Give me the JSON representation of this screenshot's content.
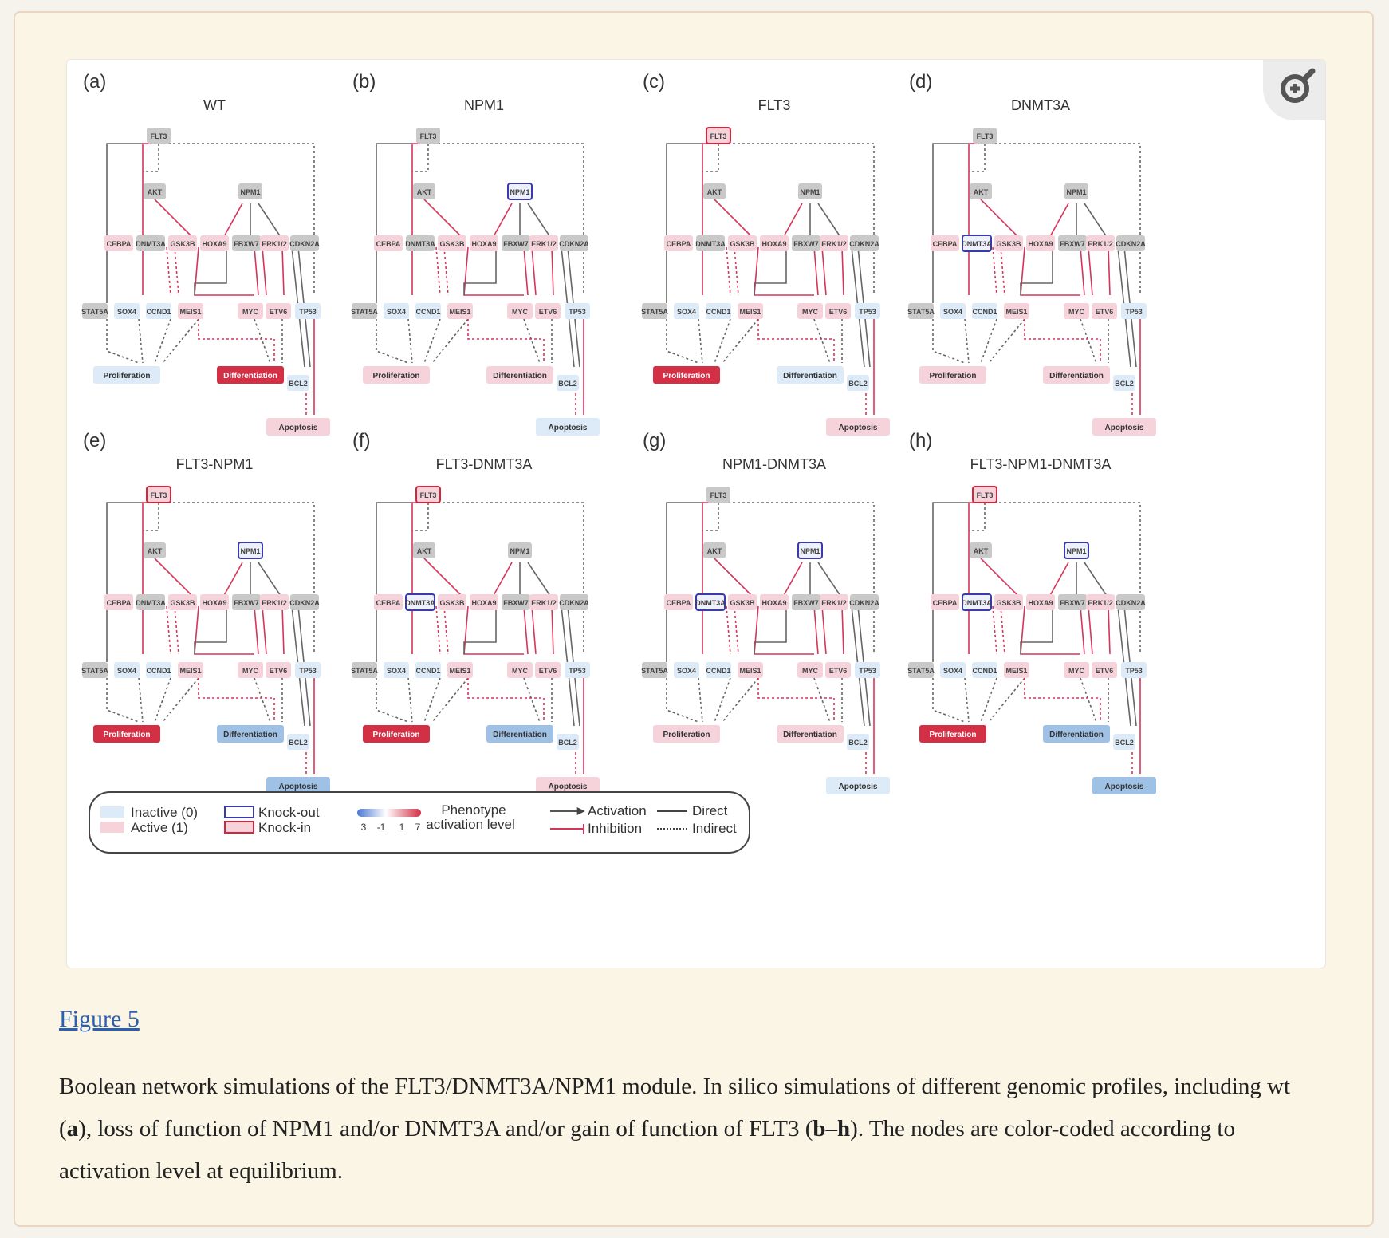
{
  "figure": {
    "panels": [
      {
        "letter": "(a)",
        "title": "WT",
        "flt3": "gray",
        "npm1": "gray",
        "dnmt3a": "gray",
        "prolif": "light-blue",
        "diff": "red",
        "apop": "light-pink"
      },
      {
        "letter": "(b)",
        "title": "NPM1",
        "flt3": "gray",
        "npm1": "knockout",
        "dnmt3a": "gray",
        "prolif": "pink",
        "diff": "pink",
        "apop": "light-blue"
      },
      {
        "letter": "(c)",
        "title": "FLT3",
        "flt3": "knockin",
        "npm1": "gray",
        "dnmt3a": "gray",
        "prolif": "red",
        "diff": "light-blue",
        "apop": "pink"
      },
      {
        "letter": "(d)",
        "title": "DNMT3A",
        "flt3": "gray",
        "npm1": "gray",
        "dnmt3a": "knockout",
        "prolif": "pink",
        "diff": "pink",
        "apop": "pink"
      },
      {
        "letter": "(e)",
        "title": "FLT3-NPM1",
        "flt3": "knockin",
        "npm1": "knockout",
        "dnmt3a": "gray",
        "prolif": "red",
        "diff": "blue",
        "apop": "blue"
      },
      {
        "letter": "(f)",
        "title": "FLT3-DNMT3A",
        "flt3": "knockin",
        "npm1": "gray",
        "dnmt3a": "knockout",
        "prolif": "red",
        "diff": "blue",
        "apop": "pink"
      },
      {
        "letter": "(g)",
        "title": "NPM1-DNMT3A",
        "flt3": "gray",
        "npm1": "knockout",
        "dnmt3a": "knockout",
        "prolif": "pink",
        "diff": "pink",
        "apop": "light-blue"
      },
      {
        "letter": "(h)",
        "title": "FLT3-NPM1-DNMT3A",
        "flt3": "knockin",
        "npm1": "knockout",
        "dnmt3a": "knockout",
        "prolif": "red",
        "diff": "blue",
        "apop": "blue"
      }
    ],
    "nodes": {
      "flt3": "FLT3",
      "akt": "AKT",
      "npm1": "NPM1",
      "row1": [
        "CEBPA",
        "DNMT3A",
        "GSK3B",
        "HOXA9",
        "FBXW7",
        "ERK1/2",
        "CDKN2A"
      ],
      "row2": [
        "STAT5A",
        "SOX4",
        "CCND1",
        "MEIS1",
        "MYC",
        "ETV6",
        "TP53"
      ],
      "bcl2": "BCL2",
      "proliferation": "Proliferation",
      "differentiation": "Differentiation",
      "apoptosis": "Apoptosis"
    },
    "legend": {
      "inactive": "Inactive (0)",
      "active": "Active (1)",
      "knockout": "Knock-out",
      "knockin": "Knock-in",
      "phenotype_line1": "Phenotype",
      "phenotype_line2": "activation level",
      "scale_ticks": [
        "3",
        "-1",
        "1",
        "7"
      ],
      "activation": "Activation",
      "inhibition": "Inhibition",
      "direct": "Direct",
      "indirect": "Indirect"
    },
    "colors": {
      "gray": "#c9c9c9",
      "light_blue": "#dcebf7",
      "pink": "#f6d3da",
      "red": "#d32f45",
      "blue": "#9fc1e6",
      "knockout_border": "#3a3aa8",
      "knockin_border": "#d3263c",
      "activation_line": "#555555",
      "inhibition_line": "#d6355a"
    }
  },
  "link": {
    "label": "Figure 5"
  },
  "caption": {
    "p1": "Boolean network simulations of the FLT3/DNMT3A/NPM1 module. In silico simulations of different genomic profiles, including wt (",
    "b1": "a",
    "p2": "), loss of function of NPM1 and/or DNMT3A and/or gain of function of FLT3 (",
    "b2": "b",
    "p3": "–",
    "b3": "h",
    "p4": "). The nodes are color-coded according to activation level at equilibrium."
  }
}
